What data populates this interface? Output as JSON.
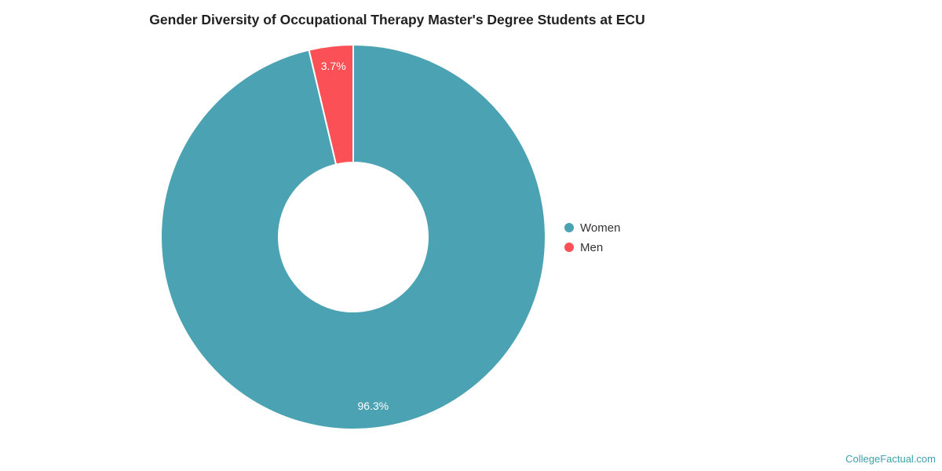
{
  "chart_data": {
    "type": "pie",
    "title": "Gender Diversity of Occupational Therapy Master's Degree Students at ECU",
    "series": [
      {
        "name": "Women",
        "value": 96.3,
        "label": "96.3%",
        "color": "#4aa2b2"
      },
      {
        "name": "Men",
        "value": 3.7,
        "label": "3.7%",
        "color": "#fb5156"
      }
    ],
    "legend_position": "right",
    "donut": true,
    "start_angle_deg": 0,
    "slice_border_color": "#ffffff",
    "data_label_color": "#ffffff"
  },
  "legend": {
    "items": [
      {
        "label": "Women",
        "color": "#4aa2b2"
      },
      {
        "label": "Men",
        "color": "#fb5156"
      }
    ]
  },
  "watermark": {
    "text": "CollegeFactual.com",
    "color": "#3fa0ae"
  }
}
